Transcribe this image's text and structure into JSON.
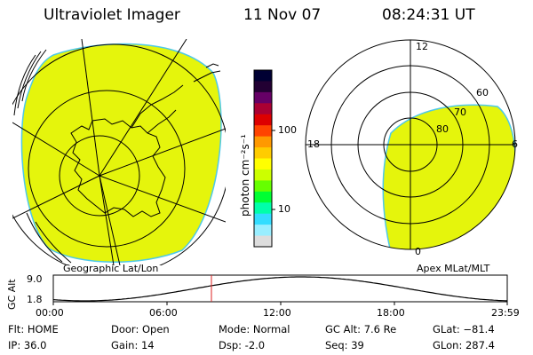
{
  "header": {
    "instrument": "Ultraviolet Imager",
    "date": "11 Nov 07",
    "time": "08:24:31 UT"
  },
  "colorbar": {
    "unit_label": "photon cm⁻²s⁻¹",
    "tick_100": "100",
    "tick_10": "10",
    "colors": [
      "#000033",
      "#220033",
      "#660066",
      "#aa0033",
      "#dd0000",
      "#ff4400",
      "#ff9900",
      "#ffcc00",
      "#ffff00",
      "#ccff00",
      "#66ff00",
      "#00ff33",
      "#00ffaa",
      "#33ddff",
      "#99eeff",
      "#dddddd"
    ]
  },
  "left_panel": {
    "caption": "Geographic Lat/Lon",
    "emission_color": "#e5f50c"
  },
  "right_panel": {
    "caption": "Apex MLat/MLT",
    "label_12": "12",
    "label_18": "18",
    "label_6": "6",
    "label_0": "0",
    "ring_60": "60",
    "ring_70": "70",
    "ring_80": "80",
    "emission_color": "#e5f50c"
  },
  "altitude_plot": {
    "ylabel": "GC Alt",
    "y_top": "9.0",
    "y_bottom": "1.8",
    "x_ticks": [
      "00:00",
      "06:00",
      "12:00",
      "18:00",
      "23:59"
    ],
    "marker_color": "#dd2222"
  },
  "info": {
    "flt": "Flt: HOME",
    "ip": "IP: 36.0",
    "door": "Door: Open",
    "gain": "Gain: 14",
    "mode": "Mode: Normal",
    "dsp": "Dsp:    -2.0",
    "gc_alt": "GC Alt: 7.6 Re",
    "seq": "Seq: 39",
    "glat": "GLat: −81.4",
    "glon": "GLon: 287.4"
  }
}
